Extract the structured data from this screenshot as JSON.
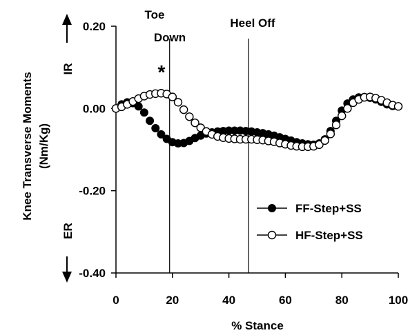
{
  "chart_data": {
    "type": "scatter",
    "xlabel": "% Stance",
    "ylabel_lines": [
      "Knee Transverse Moments",
      "(Nm/Kg)"
    ],
    "xlim": [
      0,
      100
    ],
    "ylim": [
      -0.4,
      0.2
    ],
    "x_ticks": [
      0,
      20,
      40,
      60,
      80,
      100
    ],
    "x_tick_labels": [
      "0",
      "20",
      "40",
      "60",
      "80",
      "100"
    ],
    "y_ticks": [
      0.2,
      0,
      -0.2,
      -0.4
    ],
    "y_tick_labels": [
      "0.20",
      "0.00",
      "-0.20",
      "-0.40"
    ],
    "direction_labels": {
      "upper": "IR",
      "lower": "ER"
    },
    "events": [
      {
        "x": 19,
        "label_lines": [
          "Toe",
          "Down"
        ]
      },
      {
        "x": 47,
        "label_lines": [
          "Heel Off"
        ]
      }
    ],
    "significance_marker": {
      "text": "*",
      "x": 17,
      "y": 0.09
    },
    "legend_position": "lower-right",
    "series": [
      {
        "name": "FF-Step+SS",
        "marker": "filled-circle",
        "color": "#000000",
        "x": [
          0,
          2,
          4,
          6,
          8,
          10,
          12,
          14,
          16,
          18,
          20,
          22,
          24,
          26,
          28,
          30,
          32,
          34,
          36,
          38,
          40,
          42,
          44,
          46,
          48,
          50,
          52,
          54,
          56,
          58,
          60,
          62,
          64,
          66,
          68,
          70,
          72,
          74,
          76,
          78,
          80,
          82,
          84,
          86,
          88,
          90,
          92,
          94,
          96,
          98,
          100
        ],
        "y": [
          0.0,
          0.01,
          0.015,
          0.013,
          0.005,
          -0.01,
          -0.03,
          -0.048,
          -0.063,
          -0.074,
          -0.082,
          -0.085,
          -0.084,
          -0.079,
          -0.072,
          -0.066,
          -0.061,
          -0.058,
          -0.056,
          -0.055,
          -0.054,
          -0.054,
          -0.054,
          -0.055,
          -0.056,
          -0.058,
          -0.06,
          -0.063,
          -0.066,
          -0.07,
          -0.074,
          -0.078,
          -0.082,
          -0.085,
          -0.087,
          -0.088,
          -0.085,
          -0.075,
          -0.055,
          -0.03,
          -0.005,
          0.012,
          0.022,
          0.027,
          0.028,
          0.026,
          0.022,
          0.016,
          0.01,
          0.006,
          0.005
        ]
      },
      {
        "name": "HF-Step+SS",
        "marker": "open-circle",
        "color": "#000000",
        "x": [
          0,
          2,
          4,
          6,
          8,
          10,
          12,
          14,
          16,
          18,
          20,
          22,
          24,
          26,
          28,
          30,
          32,
          34,
          36,
          38,
          40,
          42,
          44,
          46,
          48,
          50,
          52,
          54,
          56,
          58,
          60,
          62,
          64,
          66,
          68,
          70,
          72,
          74,
          76,
          78,
          80,
          82,
          84,
          86,
          88,
          90,
          92,
          94,
          96,
          98,
          100
        ],
        "y": [
          0.0,
          0.004,
          0.01,
          0.017,
          0.024,
          0.03,
          0.034,
          0.036,
          0.037,
          0.035,
          0.028,
          0.015,
          -0.003,
          -0.02,
          -0.035,
          -0.047,
          -0.056,
          -0.063,
          -0.068,
          -0.071,
          -0.073,
          -0.074,
          -0.075,
          -0.075,
          -0.075,
          -0.076,
          -0.077,
          -0.079,
          -0.081,
          -0.084,
          -0.087,
          -0.09,
          -0.092,
          -0.093,
          -0.093,
          -0.092,
          -0.088,
          -0.078,
          -0.062,
          -0.04,
          -0.018,
          0.0,
          0.014,
          0.022,
          0.027,
          0.028,
          0.025,
          0.02,
          0.014,
          0.008,
          0.005
        ]
      }
    ]
  }
}
